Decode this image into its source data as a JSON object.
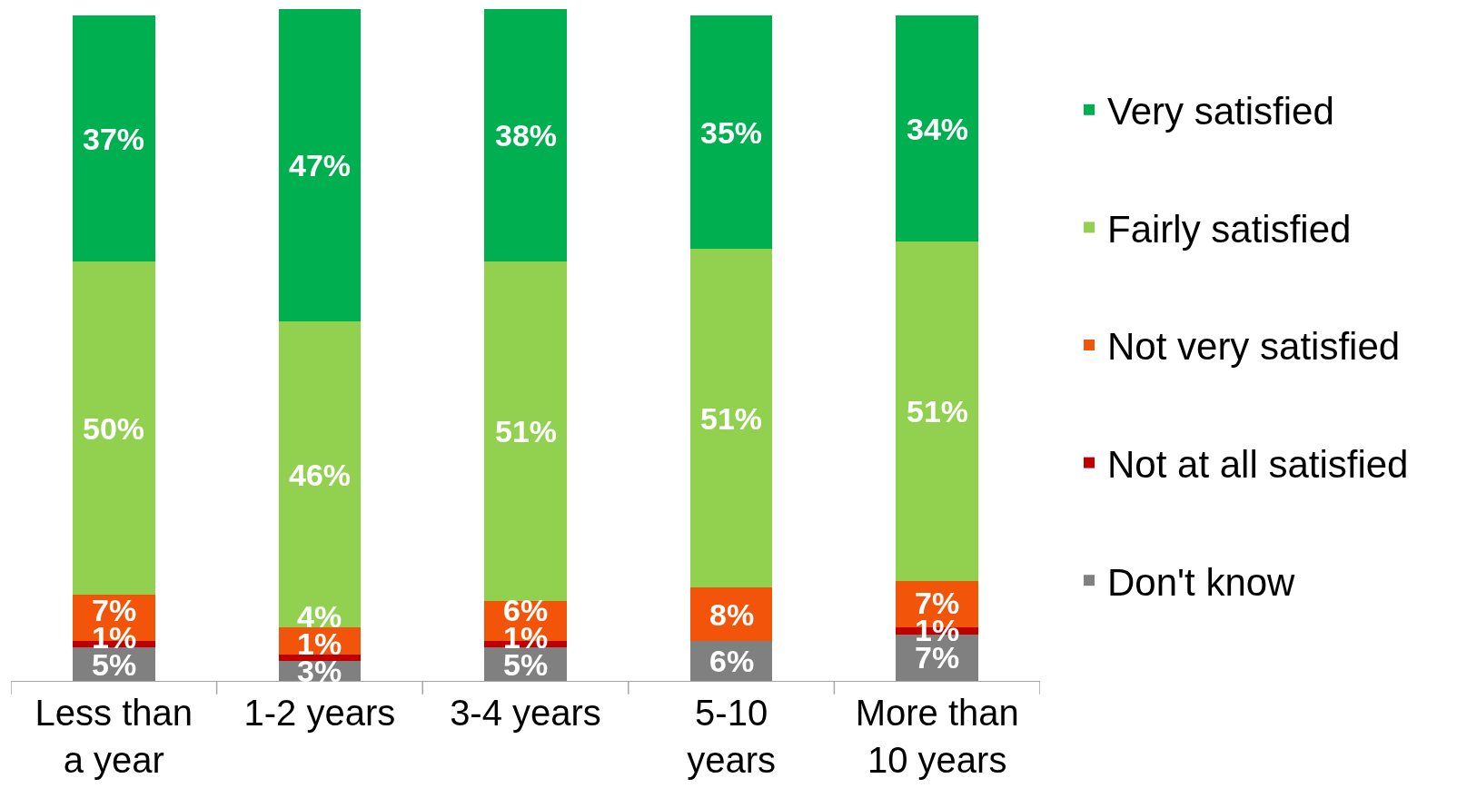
{
  "chart_data": {
    "type": "bar",
    "stacked": true,
    "legend": "right",
    "categories": [
      "Less than a year",
      "1-2 years",
      "3-4 years",
      "5-10 years",
      "More than 10 years"
    ],
    "series": [
      {
        "name": "Don't know",
        "color": "#808080",
        "values": [
          5,
          3,
          5,
          6,
          7
        ],
        "value_labels": [
          "5%",
          "3%",
          "5%",
          "6%",
          "7%"
        ]
      },
      {
        "name": "Not at all satisfied",
        "color": "#c00000",
        "values": [
          1,
          1,
          1,
          null,
          1
        ],
        "value_labels": [
          "1%",
          "1%",
          "1%",
          null,
          "1%"
        ]
      },
      {
        "name": "Not very satisfied",
        "color": "#f25409",
        "values": [
          7,
          4,
          6,
          8,
          7
        ],
        "value_labels": [
          "7%",
          "4%",
          "6%",
          "8%",
          "7%"
        ]
      },
      {
        "name": "Fairly satisfied",
        "color": "#92d050",
        "values": [
          50,
          46,
          51,
          51,
          51
        ],
        "value_labels": [
          "50%",
          "46%",
          "51%",
          "51%",
          "51%"
        ]
      },
      {
        "name": "Very satisfied",
        "color": "#00b050",
        "values": [
          37,
          47,
          38,
          35,
          34
        ],
        "value_labels": [
          "37%",
          "47%",
          "38%",
          "35%",
          "34%"
        ]
      }
    ]
  }
}
